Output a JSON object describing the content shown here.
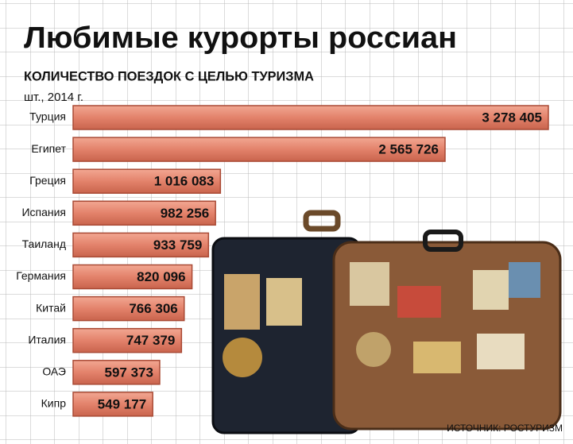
{
  "chart_data": {
    "type": "bar",
    "orientation": "horizontal",
    "title": "Любимые курорты россиан",
    "subtitle": "КОЛИЧЕСТВО ПОЕЗДОК С ЦЕЛЬЮ ТУРИЗМА",
    "unit": "шт., 2014 г.",
    "source": "ИСТОЧНИК: РОСТУРИЗМ",
    "categories": [
      "Турция",
      "Египет",
      "Греция",
      "Испания",
      "Таиланд",
      "Германия",
      "Китай",
      "Италия",
      "ОАЭ",
      "Кипр"
    ],
    "values": [
      3278405,
      2565726,
      1016083,
      982256,
      933759,
      820096,
      766306,
      747379,
      597373,
      549177
    ],
    "value_labels": [
      "3 278 405",
      "2 565 726",
      "1 016 083",
      "982 256",
      "933 759",
      "820 096",
      "766 306",
      "747 379",
      "597 373",
      "549 177"
    ],
    "color": "#e3826b"
  }
}
